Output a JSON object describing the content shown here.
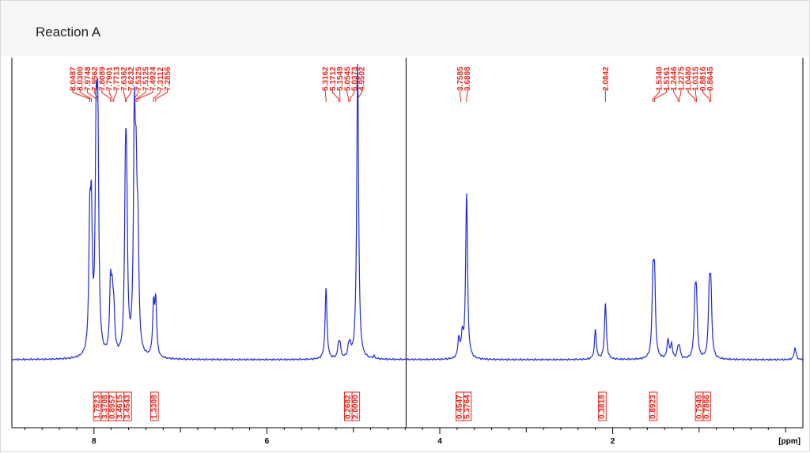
{
  "page": {
    "title": "Reaction A"
  },
  "colors": {
    "spectrum": "#1f2bd6",
    "annotation": "#e8251c",
    "axis": "#000000",
    "frame_fill": "#f7f7f7"
  },
  "chart_data": {
    "type": "line",
    "title": "Reaction A",
    "xlabel": "[ppm]",
    "ylabel": "",
    "x_reversed": true,
    "xlim": [
      8.95,
      -0.2
    ],
    "ylim": [
      0,
      100
    ],
    "x_ticks": [
      "8",
      "6",
      "4",
      "2"
    ],
    "x_tick_values": [
      8,
      6,
      4,
      2
    ],
    "grid": false,
    "split_marker_ppm": 4.39,
    "peak_labels": [
      "8.0487",
      "8.0300",
      "7.9748",
      "7.9562",
      "7.8089",
      "7.7901",
      "7.7713",
      "7.6362",
      "7.6232",
      "7.5325",
      "7.5125",
      "7.4924",
      "7.3112",
      "7.2856",
      "5.3162",
      "5.1712",
      "5.1549",
      "5.0545",
      "5.0373",
      "4.9502",
      "3.7585",
      "3.6898",
      "2.0842",
      "1.5340",
      "1.5161",
      "1.2446",
      "1.2275",
      "1.0480",
      "1.0315",
      "0.8816",
      "0.8645"
    ],
    "integrals": [
      {
        "label": "1.7523",
        "center": 8.04
      },
      {
        "label": "3.3708",
        "center": 7.96
      },
      {
        "label": "0.8957",
        "center": 7.79
      },
      {
        "label": "3.4615",
        "center": 7.63
      },
      {
        "label": "3.4543",
        "center": 7.51
      },
      {
        "label": "1.3308",
        "center": 7.3
      },
      {
        "label": "0.2682",
        "center": 5.08
      },
      {
        "label": "2.0000",
        "center": 4.95
      },
      {
        "label": "0.4547",
        "center": 3.76
      },
      {
        "label": "5.3764",
        "center": 3.69
      },
      {
        "label": "0.3818",
        "center": 2.12
      },
      {
        "label": "0.8923",
        "center": 1.53
      },
      {
        "label": "0.7949",
        "center": 1.04
      },
      {
        "label": "0.7866",
        "center": 0.87
      }
    ],
    "peaks": [
      {
        "ppm": 8.049,
        "height": 48
      },
      {
        "ppm": 8.03,
        "height": 51
      },
      {
        "ppm": 7.975,
        "height": 82
      },
      {
        "ppm": 7.956,
        "height": 84
      },
      {
        "ppm": 7.809,
        "height": 27
      },
      {
        "ppm": 7.79,
        "height": 19
      },
      {
        "ppm": 7.771,
        "height": 16
      },
      {
        "ppm": 7.636,
        "height": 61
      },
      {
        "ppm": 7.623,
        "height": 54
      },
      {
        "ppm": 7.533,
        "height": 88
      },
      {
        "ppm": 7.513,
        "height": 56
      },
      {
        "ppm": 7.492,
        "height": 42
      },
      {
        "ppm": 7.311,
        "height": 20
      },
      {
        "ppm": 7.286,
        "height": 22
      },
      {
        "ppm": 5.316,
        "height": 29
      },
      {
        "ppm": 5.171,
        "height": 5
      },
      {
        "ppm": 5.155,
        "height": 5
      },
      {
        "ppm": 5.054,
        "height": 4
      },
      {
        "ppm": 5.037,
        "height": 4
      },
      {
        "ppm": 4.95,
        "height": 122
      },
      {
        "ppm": 4.76,
        "height": 1
      },
      {
        "ppm": 3.78,
        "height": 8
      },
      {
        "ppm": 3.74,
        "height": 9
      },
      {
        "ppm": 3.69,
        "height": 68
      },
      {
        "ppm": 2.2,
        "height": 12
      },
      {
        "ppm": 2.084,
        "height": 23
      },
      {
        "ppm": 1.534,
        "height": 30
      },
      {
        "ppm": 1.516,
        "height": 30
      },
      {
        "ppm": 1.36,
        "height": 8
      },
      {
        "ppm": 1.32,
        "height": 6
      },
      {
        "ppm": 1.244,
        "height": 4
      },
      {
        "ppm": 1.227,
        "height": 4
      },
      {
        "ppm": 1.048,
        "height": 22
      },
      {
        "ppm": 1.031,
        "height": 22
      },
      {
        "ppm": 0.882,
        "height": 26
      },
      {
        "ppm": 0.864,
        "height": 25
      },
      {
        "ppm": -0.11,
        "height": 5
      }
    ]
  }
}
